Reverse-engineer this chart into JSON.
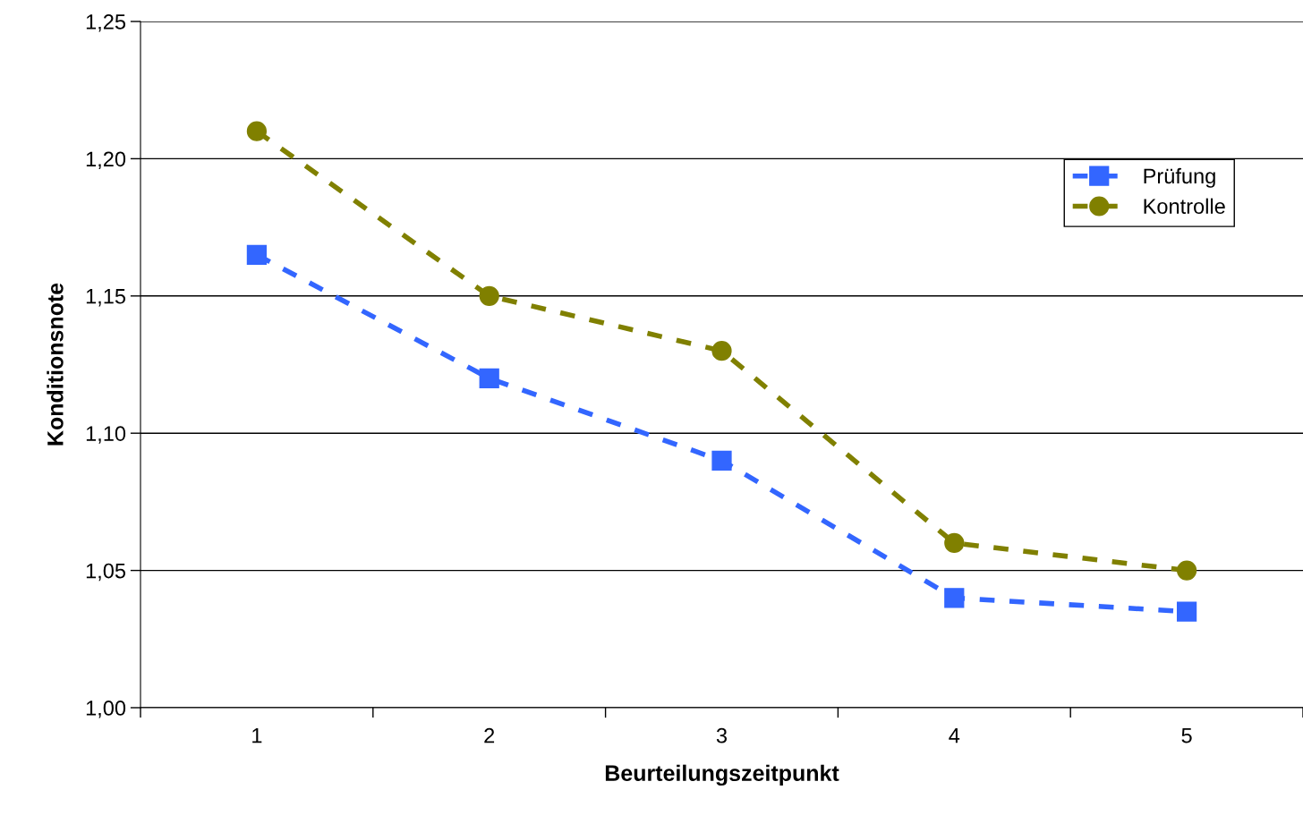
{
  "chart_data": {
    "type": "line",
    "xlabel": "Beurteilungszeitpunkt",
    "ylabel": "Konditionsnote",
    "categories": [
      "1",
      "2",
      "3",
      "4",
      "5"
    ],
    "series": [
      {
        "name": "Prüfung",
        "color": "#3366ff",
        "marker": "square",
        "line_style": "dashed",
        "values": [
          1.165,
          1.12,
          1.09,
          1.04,
          1.035
        ]
      },
      {
        "name": "Kontrolle",
        "color": "#808000",
        "marker": "circle",
        "line_style": "dashed",
        "values": [
          1.21,
          1.15,
          1.13,
          1.06,
          1.05
        ]
      }
    ],
    "ylim": [
      1.0,
      1.25
    ],
    "yticks": [
      {
        "value": 1.0,
        "label": "1,00"
      },
      {
        "value": 1.05,
        "label": "1,05"
      },
      {
        "value": 1.1,
        "label": "1,10"
      },
      {
        "value": 1.15,
        "label": "1,15"
      },
      {
        "value": 1.2,
        "label": "1,20"
      },
      {
        "value": 1.25,
        "label": "1,25"
      }
    ],
    "grid": "y",
    "legend": "right"
  }
}
